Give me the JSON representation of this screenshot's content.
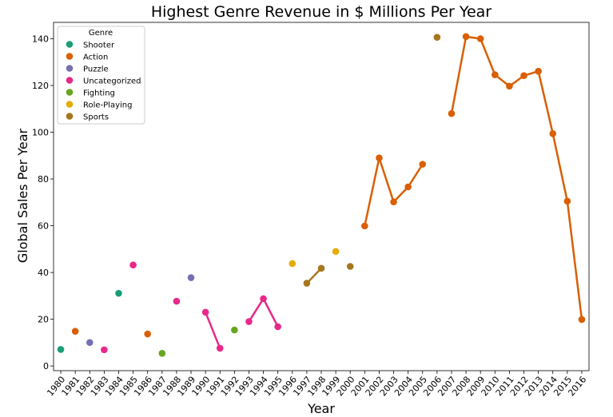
{
  "chart_data": {
    "type": "scatter",
    "title": "Highest Genre Revenue in $ Millions Per Year",
    "xlabel": "Year",
    "ylabel": "Global Sales Per Year",
    "ylim": [
      -2,
      147
    ],
    "yticks": [
      0,
      20,
      40,
      60,
      80,
      100,
      120,
      140
    ],
    "categories": [
      "1980",
      "1981",
      "1982",
      "1983",
      "1984",
      "1985",
      "1986",
      "1987",
      "1988",
      "1989",
      "1990",
      "1991",
      "1992",
      "1993",
      "1994",
      "1995",
      "1996",
      "1997",
      "1998",
      "1999",
      "2000",
      "2001",
      "2002",
      "2003",
      "2004",
      "2005",
      "2006",
      "2007",
      "2008",
      "2009",
      "2010",
      "2011",
      "2012",
      "2013",
      "2014",
      "2015",
      "2016"
    ],
    "legend": {
      "title": "Genre",
      "position": "top-left",
      "entries": [
        {
          "name": "Shooter",
          "color": "#1b9e77"
        },
        {
          "name": "Action",
          "color": "#d95f02"
        },
        {
          "name": "Puzzle",
          "color": "#7570b3"
        },
        {
          "name": "Uncategorized",
          "color": "#e7298a"
        },
        {
          "name": "Fighting",
          "color": "#66a61e"
        },
        {
          "name": "Role-Playing",
          "color": "#e6ab02"
        },
        {
          "name": "Sports",
          "color": "#a6761d"
        }
      ]
    },
    "points": [
      {
        "x": "1980",
        "y": 7.07,
        "genre": "Shooter"
      },
      {
        "x": "1981",
        "y": 14.84,
        "genre": "Action"
      },
      {
        "x": "1982",
        "y": 10.04,
        "genre": "Puzzle"
      },
      {
        "x": "1983",
        "y": 6.93,
        "genre": "Uncategorized"
      },
      {
        "x": "1984",
        "y": 31.1,
        "genre": "Shooter"
      },
      {
        "x": "1985",
        "y": 43.2,
        "genre": "Uncategorized"
      },
      {
        "x": "1986",
        "y": 13.7,
        "genre": "Action"
      },
      {
        "x": "1987",
        "y": 5.4,
        "genre": "Fighting"
      },
      {
        "x": "1988",
        "y": 27.7,
        "genre": "Uncategorized"
      },
      {
        "x": "1989",
        "y": 37.8,
        "genre": "Puzzle"
      },
      {
        "x": "1990",
        "y": 23.0,
        "genre": "Uncategorized"
      },
      {
        "x": "1991",
        "y": 7.6,
        "genre": "Uncategorized"
      },
      {
        "x": "1992",
        "y": 15.4,
        "genre": "Fighting"
      },
      {
        "x": "1993",
        "y": 19.0,
        "genre": "Uncategorized"
      },
      {
        "x": "1994",
        "y": 28.8,
        "genre": "Uncategorized"
      },
      {
        "x": "1995",
        "y": 16.8,
        "genre": "Uncategorized"
      },
      {
        "x": "1996",
        "y": 43.8,
        "genre": "Role-Playing"
      },
      {
        "x": "1997",
        "y": 35.4,
        "genre": "Sports"
      },
      {
        "x": "1998",
        "y": 41.8,
        "genre": "Sports"
      },
      {
        "x": "1999",
        "y": 49.0,
        "genre": "Role-Playing"
      },
      {
        "x": "2000",
        "y": 42.6,
        "genre": "Sports"
      },
      {
        "x": "2001",
        "y": 59.9,
        "genre": "Action"
      },
      {
        "x": "2002",
        "y": 89.0,
        "genre": "Action"
      },
      {
        "x": "2003",
        "y": 70.2,
        "genre": "Action"
      },
      {
        "x": "2004",
        "y": 76.6,
        "genre": "Action"
      },
      {
        "x": "2005",
        "y": 86.3,
        "genre": "Action"
      },
      {
        "x": "2006",
        "y": 140.6,
        "genre": "Sports"
      },
      {
        "x": "2007",
        "y": 108.0,
        "genre": "Action"
      },
      {
        "x": "2008",
        "y": 140.9,
        "genre": "Action"
      },
      {
        "x": "2009",
        "y": 140.0,
        "genre": "Action"
      },
      {
        "x": "2010",
        "y": 124.6,
        "genre": "Action"
      },
      {
        "x": "2011",
        "y": 119.7,
        "genre": "Action"
      },
      {
        "x": "2012",
        "y": 124.2,
        "genre": "Action"
      },
      {
        "x": "2013",
        "y": 126.1,
        "genre": "Action"
      },
      {
        "x": "2014",
        "y": 99.4,
        "genre": "Action"
      },
      {
        "x": "2015",
        "y": 70.5,
        "genre": "Action"
      },
      {
        "x": "2016",
        "y": 19.9,
        "genre": "Action"
      }
    ],
    "grid": false
  }
}
